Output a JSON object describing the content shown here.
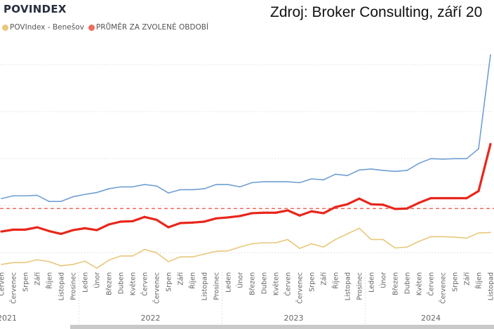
{
  "header": {
    "title": "POVINDEX",
    "source": "Zdroj: Broker Consulting, září 20"
  },
  "chart_data": {
    "type": "line",
    "title": "POVINDEX",
    "xlabel": "",
    "ylabel": "",
    "ylim": [
      -3.7,
      44.8
    ],
    "grid": true,
    "gridlines": [
      0,
      10,
      20,
      30,
      40
    ],
    "legend_position": "top-left",
    "legend": [
      {
        "label": "POVIndex - Benešov",
        "color": "#e8c77a"
      },
      {
        "label": "PRŮMĚR ZA ZVOLENÉ OBDOBÍ",
        "color": "#ee6b60"
      }
    ],
    "categories": [
      "Červen",
      "Červenec",
      "Srpen",
      "Září",
      "Říjen",
      "Listopad",
      "Prosinec",
      "Leden",
      "Únor",
      "Březen",
      "Duben",
      "Květen",
      "Červen",
      "Červenec",
      "Srpen",
      "Září",
      "Říjen",
      "Listopad",
      "Prosinec",
      "Leden",
      "Únor",
      "Březen",
      "Duben",
      "Květen",
      "Červen",
      "Červenec",
      "Srpen",
      "Září",
      "Říjen",
      "Listopad",
      "Prosinec",
      "Leden",
      "Únor",
      "Březen",
      "Duben",
      "Květen",
      "Červen",
      "Červenec",
      "Srpen",
      "Září",
      "Říjen",
      "Listopad"
    ],
    "years": [
      {
        "label": "2021",
        "start": 0,
        "count": 7
      },
      {
        "label": "2022",
        "start": 7,
        "count": 12
      },
      {
        "label": "2023",
        "start": 19,
        "count": 12
      },
      {
        "label": "2024",
        "start": 31,
        "count": 11
      }
    ],
    "series": [
      {
        "name": "blue",
        "color": "#6f9fd3",
        "width": 1.6,
        "values": [
          11.5,
          12.1,
          12.1,
          12.2,
          10.9,
          10.9,
          11.9,
          12.4,
          12.8,
          13.6,
          14.0,
          14.0,
          14.5,
          14.2,
          12.7,
          13.4,
          13.4,
          13.6,
          14.5,
          14.5,
          14.0,
          14.9,
          15.1,
          15.1,
          15.1,
          14.9,
          15.7,
          15.5,
          16.7,
          16.4,
          17.6,
          17.8,
          17.5,
          17.3,
          17.5,
          19.0,
          20.0,
          19.9,
          20.0,
          20.0,
          22.1,
          42.1
        ]
      },
      {
        "name": "POVIndex - Benešov",
        "color": "#e8c77a",
        "width": 1.6,
        "values": [
          -2.5,
          -2.1,
          -2.1,
          -1.5,
          -1.9,
          -2.8,
          -2.5,
          -1.8,
          -3.3,
          -1.6,
          -0.7,
          -0.7,
          0.7,
          0.0,
          -1.9,
          -0.9,
          -0.9,
          -0.3,
          0.3,
          0.4,
          1.2,
          1.9,
          2.1,
          2.1,
          2.8,
          0.9,
          1.9,
          1.2,
          2.8,
          4.0,
          5.2,
          2.8,
          2.8,
          1.0,
          1.2,
          2.4,
          3.4,
          3.4,
          3.3,
          3.1,
          4.2,
          4.3
        ]
      },
      {
        "name": "red",
        "color": "#e8261b",
        "width": 3.2,
        "values": [
          4.5,
          4.9,
          4.9,
          5.4,
          4.6,
          4.0,
          4.8,
          5.2,
          4.8,
          6.0,
          6.6,
          6.7,
          7.6,
          7.0,
          5.4,
          6.3,
          6.4,
          6.6,
          7.3,
          7.5,
          7.8,
          8.4,
          8.5,
          8.5,
          9.0,
          7.9,
          8.8,
          8.4,
          9.7,
          10.3,
          11.5,
          10.3,
          10.2,
          9.3,
          9.4,
          10.6,
          11.6,
          11.6,
          11.6,
          11.6,
          13.1,
          23.1
        ]
      }
    ],
    "average": {
      "name": "PRŮMĚR ZA ZVOLENÉ OBDOBÍ",
      "value": 9.4,
      "color": "#ee6b60"
    }
  }
}
